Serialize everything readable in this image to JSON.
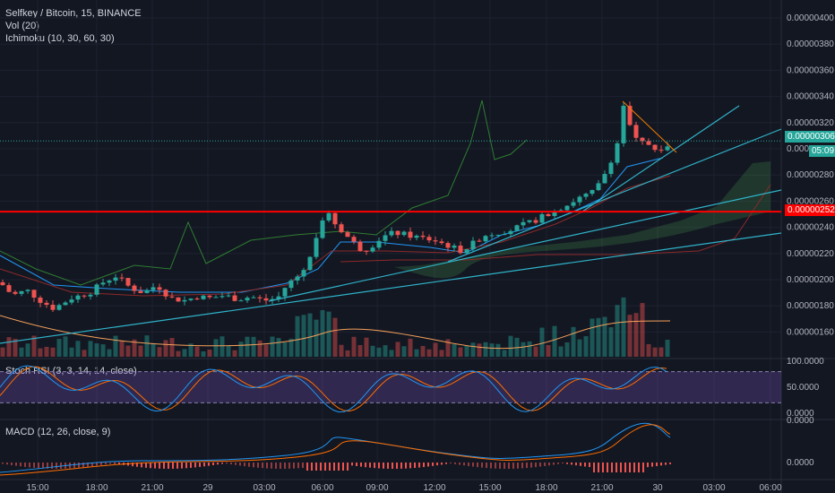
{
  "header": {
    "symbol": "Selfkey / Bitcoin, 15, BINANCE",
    "vol": "Vol (20)",
    "ichimoku": "Ichimoku (10, 30, 60, 30)"
  },
  "price_axis": {
    "labels": [
      "0.00000400",
      "0.00000380",
      "0.00000360",
      "0.00000340",
      "0.00000320",
      "0.00000300",
      "0.00000280",
      "0.00000260",
      "0.00000240",
      "0.00000220",
      "0.00000200",
      "0.00000180",
      "0.00000160"
    ],
    "last_price_tag": "0.00000306",
    "countdown_tag": "05:09",
    "level_tag": "0.00000252"
  },
  "stoch": {
    "label": "Stoch RSI (3, 3, 14, 14, close)",
    "axis_labels": [
      "100.0000",
      "50.0000",
      "0.0000"
    ]
  },
  "macd": {
    "label": "MACD (12, 26, close, 9)",
    "axis_labels": [
      "0.0000",
      "0.0000"
    ]
  },
  "time_axis": {
    "labels": [
      "15:00",
      "18:00",
      "21:00",
      "29",
      "03:00",
      "06:00",
      "09:00",
      "12:00",
      "15:00",
      "18:00",
      "21:00",
      "30",
      "03:00",
      "06:00"
    ]
  },
  "colors": {
    "background": "#131722",
    "up": "#26a69a",
    "down": "#ef5350",
    "trendline": "#2fb3c9",
    "level": "#ff0000",
    "stoch_k": "#2196f3",
    "stoch_d": "#ff6d00",
    "stoch_band": "#7e57c2"
  },
  "chart_data": [
    {
      "type": "candlestick",
      "title": "Selfkey / Bitcoin, 15, BINANCE",
      "ylim": [
        1.5e-06,
        4.1e-06
      ],
      "horizontal_level": 2.52e-06,
      "last_price": 3.06e-06,
      "close_path": [
        [
          0,
          1.98e-06
        ],
        [
          14,
          1.88e-06
        ],
        [
          30,
          1.92e-06
        ],
        [
          45,
          1.84e-06
        ],
        [
          60,
          1.78e-06
        ],
        [
          80,
          1.86e-06
        ],
        [
          100,
          1.9e-06
        ],
        [
          115,
          1.98e-06
        ],
        [
          130,
          2.03e-06
        ],
        [
          145,
          1.94e-06
        ],
        [
          160,
          1.9e-06
        ],
        [
          175,
          1.96e-06
        ],
        [
          190,
          1.86e-06
        ],
        [
          205,
          1.84e-06
        ],
        [
          220,
          1.87e-06
        ],
        [
          235,
          1.86e-06
        ],
        [
          250,
          1.88e-06
        ],
        [
          265,
          1.85e-06
        ],
        [
          280,
          1.87e-06
        ],
        [
          295,
          1.84e-06
        ],
        [
          310,
          1.86e-06
        ],
        [
          320,
          1.96e-06
        ],
        [
          335,
          2.04e-06
        ],
        [
          345,
          2.14e-06
        ],
        [
          352,
          2.32e-06
        ],
        [
          358,
          2.44e-06
        ],
        [
          364,
          2.52e-06
        ],
        [
          370,
          2.46e-06
        ],
        [
          378,
          2.4e-06
        ],
        [
          386,
          2.34e-06
        ],
        [
          395,
          2.28e-06
        ],
        [
          405,
          2.22e-06
        ],
        [
          415,
          2.26e-06
        ],
        [
          425,
          2.32e-06
        ],
        [
          440,
          2.36e-06
        ],
        [
          455,
          2.34e-06
        ],
        [
          470,
          2.32e-06
        ],
        [
          485,
          2.3e-06
        ],
        [
          500,
          2.26e-06
        ],
        [
          515,
          2.22e-06
        ],
        [
          525,
          2.26e-06
        ],
        [
          540,
          2.34e-06
        ],
        [
          555,
          2.36e-06
        ],
        [
          570,
          2.38e-06
        ],
        [
          585,
          2.42e-06
        ],
        [
          600,
          2.46e-06
        ],
        [
          615,
          2.52e-06
        ],
        [
          630,
          2.56e-06
        ],
        [
          645,
          2.62e-06
        ],
        [
          660,
          2.66e-06
        ],
        [
          670,
          2.74e-06
        ],
        [
          680,
          2.88e-06
        ],
        [
          690,
          3.06e-06
        ],
        [
          695,
          3.36e-06
        ],
        [
          700,
          3.22e-06
        ],
        [
          707,
          3.1e-06
        ],
        [
          714,
          3.02e-06
        ],
        [
          721,
          3.08e-06
        ],
        [
          728,
          2.98e-06
        ],
        [
          735,
          3.02e-06
        ],
        [
          742,
          3e-06
        ],
        [
          748,
          3.06e-06
        ]
      ]
    },
    {
      "type": "line",
      "title": "Stoch RSI (3, 3, 14, 14, close)",
      "ylim": [
        0,
        100
      ],
      "bands": [
        20,
        80
      ]
    },
    {
      "type": "line",
      "title": "MACD (12, 26, close, 9)"
    }
  ]
}
